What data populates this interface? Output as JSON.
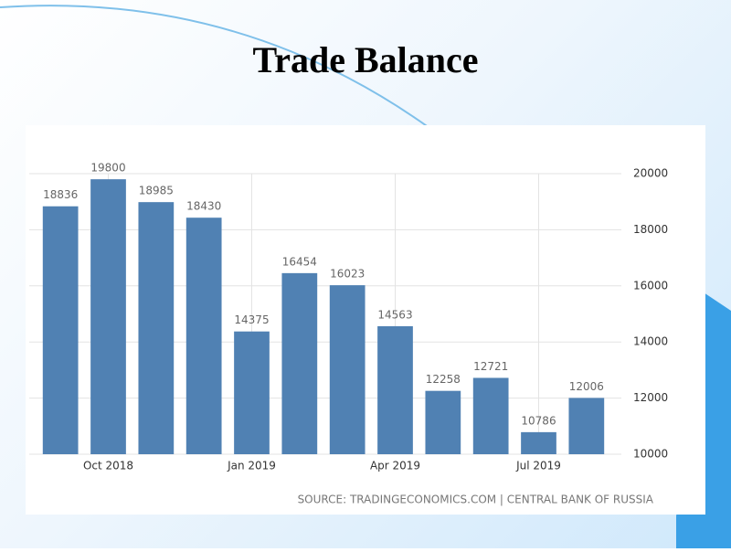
{
  "chart_data": {
    "type": "bar",
    "title": "Trade Balance",
    "source": "SOURCE: TRADINGECONOMICS.COM | CENTRAL BANK OF RUSSIA",
    "categories": [
      null,
      "Oct 2018",
      null,
      null,
      "Jan 2019",
      null,
      null,
      "Apr 2019",
      null,
      null,
      "Jul 2019",
      null
    ],
    "values": [
      18836,
      19800,
      18985,
      18430,
      14375,
      16454,
      16023,
      14563,
      12258,
      12721,
      10786,
      12006
    ],
    "color": "#5081b3",
    "ylim": [
      10000,
      20000
    ],
    "yticks": [
      10000,
      12000,
      14000,
      16000,
      18000,
      20000
    ],
    "grid": true
  }
}
